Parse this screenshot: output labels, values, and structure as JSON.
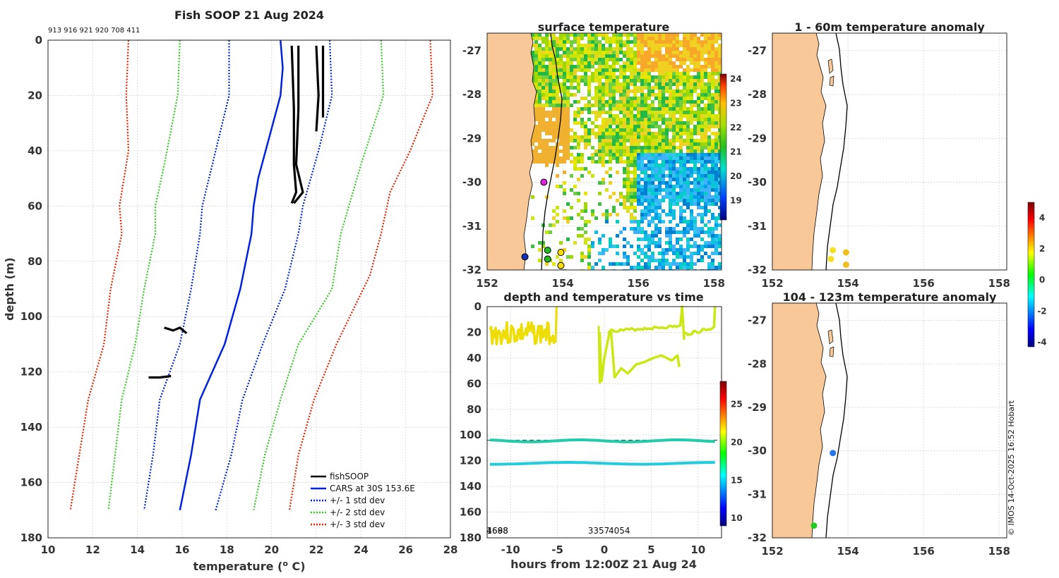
{
  "chart_data": [
    {
      "type": "line",
      "title": "Fish SOOP 21 Aug 2024",
      "top_label": "913 916 921 920 708 411",
      "xlabel": "temperature (o C)",
      "xlabel_main": "temperature (",
      "xlabel_sup": "o",
      "xlabel_end": " C)",
      "ylabel": "depth (m)",
      "xlim": [
        10,
        28
      ],
      "ylim": [
        0,
        180
      ],
      "xticks": [
        "10",
        "12",
        "14",
        "16",
        "18",
        "20",
        "22",
        "24",
        "26",
        "28"
      ],
      "yticks": [
        "0",
        "20",
        "40",
        "60",
        "80",
        "100",
        "120",
        "140",
        "160",
        "180"
      ],
      "legend": [
        "fishSOOP",
        "CARS at 30S 153.6E",
        "+/- 1 std dev",
        "+/- 2 std dev",
        "+/- 3 std dev"
      ],
      "series": [
        {
          "name": "CARS at 30S 153.6E",
          "style": "solid",
          "color": "#0022dd",
          "points": [
            [
              20.4,
              0
            ],
            [
              20.5,
              10
            ],
            [
              20.4,
              20
            ],
            [
              19.9,
              35
            ],
            [
              19.4,
              50
            ],
            [
              19.2,
              60
            ],
            [
              19.1,
              70
            ],
            [
              18.6,
              90
            ],
            [
              17.9,
              110
            ],
            [
              16.8,
              130
            ],
            [
              16.4,
              150
            ],
            [
              15.9,
              170
            ]
          ]
        },
        {
          "name": "+1 std dev",
          "style": "dotted",
          "color": "#0022dd",
          "points": [
            [
              22.6,
              0
            ],
            [
              22.7,
              20
            ],
            [
              22.1,
              40
            ],
            [
              21.4,
              60
            ],
            [
              21.2,
              70
            ],
            [
              20.6,
              90
            ],
            [
              19.6,
              110
            ],
            [
              18.7,
              130
            ],
            [
              18.2,
              150
            ],
            [
              17.5,
              170
            ]
          ]
        },
        {
          "name": "-1 std dev",
          "style": "dotted",
          "color": "#0022dd",
          "points": [
            [
              18.1,
              0
            ],
            [
              18.1,
              20
            ],
            [
              17.5,
              40
            ],
            [
              16.9,
              60
            ],
            [
              16.8,
              70
            ],
            [
              16.4,
              90
            ],
            [
              15.9,
              110
            ],
            [
              15.0,
              130
            ],
            [
              14.7,
              150
            ],
            [
              14.3,
              170
            ]
          ]
        },
        {
          "name": "+2 std dev",
          "style": "dotted",
          "color": "#33cc22",
          "points": [
            [
              24.9,
              0
            ],
            [
              25.0,
              20
            ],
            [
              24.0,
              45
            ],
            [
              23.1,
              70
            ],
            [
              22.7,
              90
            ],
            [
              21.2,
              110
            ],
            [
              20.4,
              130
            ],
            [
              19.7,
              150
            ],
            [
              19.2,
              170
            ]
          ]
        },
        {
          "name": "-2 std dev",
          "style": "dotted",
          "color": "#33cc22",
          "points": [
            [
              15.9,
              0
            ],
            [
              15.8,
              20
            ],
            [
              15.2,
              45
            ],
            [
              14.8,
              60
            ],
            [
              14.8,
              70
            ],
            [
              14.3,
              90
            ],
            [
              13.9,
              110
            ],
            [
              13.3,
              130
            ],
            [
              13.0,
              150
            ],
            [
              12.7,
              170
            ]
          ]
        },
        {
          "name": "+3 std dev",
          "style": "dotted",
          "color": "#ee2200",
          "points": [
            [
              27.1,
              0
            ],
            [
              27.2,
              20
            ],
            [
              26.2,
              40
            ],
            [
              25.3,
              55
            ],
            [
              24.9,
              70
            ],
            [
              24.4,
              85
            ],
            [
              22.9,
              110
            ],
            [
              21.9,
              130
            ],
            [
              21.2,
              150
            ],
            [
              20.8,
              170
            ]
          ]
        },
        {
          "name": "-3 std dev",
          "style": "dotted",
          "color": "#ee2200",
          "points": [
            [
              13.6,
              0
            ],
            [
              13.5,
              20
            ],
            [
              13.6,
              40
            ],
            [
              13.2,
              60
            ],
            [
              13.3,
              70
            ],
            [
              12.8,
              90
            ],
            [
              12.5,
              110
            ],
            [
              11.8,
              130
            ],
            [
              11.4,
              150
            ],
            [
              11.0,
              170
            ]
          ]
        }
      ],
      "fishsoop_traces": [
        [
          [
            20.9,
            2
          ],
          [
            21.0,
            25
          ],
          [
            21.0,
            45
          ],
          [
            21.1,
            55
          ],
          [
            20.9,
            59
          ]
        ],
        [
          [
            21.2,
            2
          ],
          [
            21.2,
            25
          ],
          [
            21.1,
            45
          ],
          [
            21.4,
            55
          ],
          [
            21.0,
            59
          ]
        ],
        [
          [
            22.0,
            2
          ],
          [
            22.1,
            20
          ],
          [
            22.0,
            33
          ]
        ],
        [
          [
            22.3,
            2
          ],
          [
            22.3,
            20
          ],
          [
            22.3,
            28
          ]
        ],
        [
          [
            15.2,
            104
          ],
          [
            15.6,
            105
          ],
          [
            15.9,
            104
          ],
          [
            16.2,
            106
          ]
        ],
        [
          [
            14.5,
            122
          ],
          [
            15.0,
            122
          ],
          [
            15.5,
            121.5
          ]
        ]
      ]
    },
    {
      "type": "heatmap",
      "title": "surface temperature",
      "xlim": [
        152,
        158.2
      ],
      "ylim": [
        -32,
        -26.6
      ],
      "xticks": [
        "152",
        "154",
        "156",
        "158"
      ],
      "yticks": [
        "-27",
        "-28",
        "-29",
        "-30",
        "-31",
        "-32"
      ],
      "colorbar_range": [
        18.2,
        24.2
      ],
      "colorbar_ticks": [
        "19",
        "20",
        "21",
        "22",
        "23",
        "24"
      ],
      "stations": [
        {
          "lon": 153.5,
          "lat": -30.0,
          "value": "magenta"
        },
        {
          "lon": 153.6,
          "lat": -31.55,
          "value": "green"
        },
        {
          "lon": 153.6,
          "lat": -31.75,
          "value": "green"
        },
        {
          "lon": 153.95,
          "lat": -31.6,
          "value": "yellow"
        },
        {
          "lon": 153.95,
          "lat": -31.9,
          "value": "yellow"
        },
        {
          "lon": 153.0,
          "lat": -31.7,
          "value": "blue"
        }
      ]
    },
    {
      "type": "scatter",
      "title": "1 - 60m temperature anomaly",
      "xlim": [
        152,
        158.2
      ],
      "ylim": [
        -32,
        -26.6
      ],
      "xticks": [
        "152",
        "154",
        "156",
        "158"
      ],
      "yticks": [
        "-27",
        "-28",
        "-29",
        "-30",
        "-31",
        "-32"
      ],
      "points": [
        {
          "lon": 153.6,
          "lat": -31.55,
          "anom": 2.3
        },
        {
          "lon": 153.55,
          "lat": -31.75,
          "anom": 2.4
        },
        {
          "lon": 153.95,
          "lat": -31.6,
          "anom": 1.8
        },
        {
          "lon": 153.95,
          "lat": -31.88,
          "anom": 1.8
        }
      ]
    },
    {
      "type": "scatter",
      "title": "depth and temperature vs time",
      "xlabel": "hours from 12:00Z 21 Aug 24",
      "xlim": [
        -12.5,
        12.5
      ],
      "ylim": [
        0,
        180
      ],
      "xticks": [
        "-10",
        "-5",
        "0",
        "5",
        "10"
      ],
      "yticks": [
        "0",
        "20",
        "40",
        "60",
        "80",
        "100",
        "120",
        "140",
        "160",
        "180"
      ],
      "bottom_labels": [
        "1698",
        "4688",
        "3357",
        "4054"
      ],
      "colorbar_range": [
        9,
        28
      ],
      "colorbar_ticks": [
        "10",
        "15",
        "20",
        "25"
      ],
      "dashed_depth": 104
    },
    {
      "type": "scatter",
      "title": "104 - 123m temperature anomaly",
      "xlim": [
        152,
        158.2
      ],
      "ylim": [
        -32,
        -26.6
      ],
      "xticks": [
        "152",
        "154",
        "156",
        "158"
      ],
      "yticks": [
        "-27",
        "-28",
        "-29",
        "-30",
        "-31",
        "-32"
      ],
      "colorbar_range": [
        -4.3,
        5
      ],
      "colorbar_ticks": [
        "4",
        "2",
        "0",
        "-2",
        "-4"
      ],
      "points": [
        {
          "lon": 153.6,
          "lat": -30.05,
          "anom": -2.6
        },
        {
          "lon": 153.1,
          "lat": -31.72,
          "anom": 0.6
        }
      ]
    }
  ],
  "credit": "© IMOS 14-Oct-2025 16:52 Hobart",
  "colors": {
    "land": "#f9c898",
    "grid": "#d4d4d4",
    "cars": "#0022dd",
    "std2": "#33cc22",
    "std3": "#ee2200"
  }
}
